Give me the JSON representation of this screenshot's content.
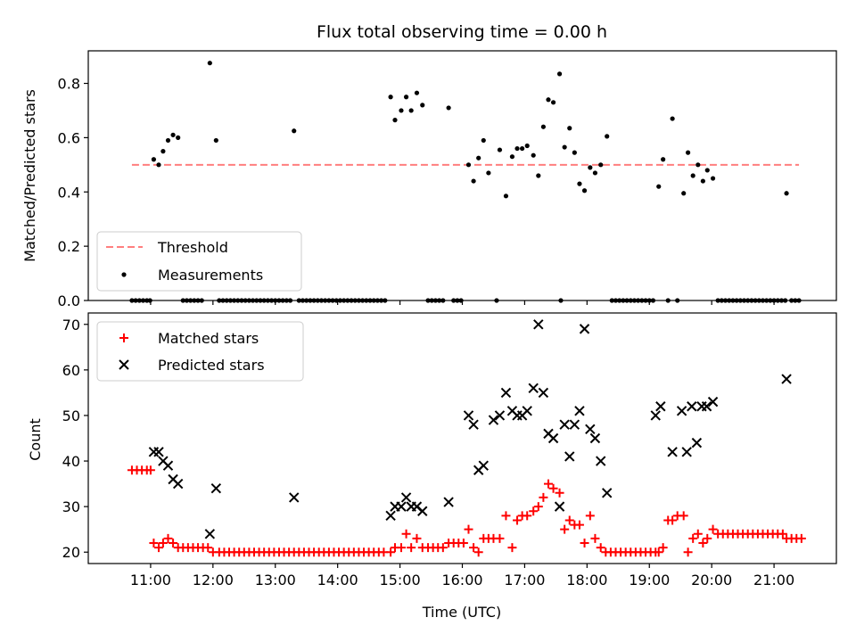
{
  "chart_data": [
    {
      "type": "scatter",
      "title": "Flux total observing time = 0.00 h",
      "xlabel": "",
      "ylabel": "Matched/Predicted stars",
      "ylim": [
        0,
        0.92
      ],
      "xlim": [
        10.0,
        22.0
      ],
      "yticks": [
        0.0,
        0.2,
        0.4,
        0.6,
        0.8
      ],
      "ytick_labels": [
        "0.0",
        "0.2",
        "0.4",
        "0.6",
        "0.8"
      ],
      "legend": {
        "position": "lower-left",
        "entries": [
          "Threshold",
          "Measurements"
        ]
      },
      "threshold": {
        "name": "Threshold",
        "value": 0.5,
        "x_range": [
          10.7,
          21.4
        ],
        "color": "#ff7f7f",
        "style": "dashed"
      },
      "series": [
        {
          "name": "Measurements",
          "color": "#000000",
          "x": [
            11.05,
            11.13,
            11.2,
            11.28,
            11.36,
            11.44,
            11.95,
            12.05,
            13.3,
            14.85,
            14.92,
            15.02,
            15.1,
            15.18,
            15.27,
            15.36,
            15.78,
            16.1,
            16.18,
            16.26,
            16.34,
            16.42,
            16.6,
            16.7,
            16.8,
            16.88,
            16.96,
            17.04,
            17.14,
            17.22,
            17.3,
            17.38,
            17.46,
            17.56,
            17.64,
            17.72,
            17.8,
            17.88,
            17.96,
            18.05,
            18.13,
            18.22,
            18.32,
            19.15,
            19.22,
            19.37,
            19.55,
            19.62,
            19.7,
            19.78,
            19.86,
            19.93,
            20.02,
            21.2
          ],
          "y": [
            0.52,
            0.5,
            0.55,
            0.59,
            0.61,
            0.6,
            0.875,
            0.59,
            0.625,
            0.75,
            0.665,
            0.7,
            0.75,
            0.7,
            0.765,
            0.72,
            0.71,
            0.5,
            0.44,
            0.525,
            0.59,
            0.47,
            0.555,
            0.385,
            0.53,
            0.56,
            0.56,
            0.57,
            0.535,
            0.46,
            0.64,
            0.74,
            0.73,
            0.835,
            0.565,
            0.635,
            0.545,
            0.43,
            0.405,
            0.49,
            0.47,
            0.5,
            0.605,
            0.42,
            0.52,
            0.67,
            0.395,
            0.545,
            0.46,
            0.5,
            0.44,
            0.48,
            0.45,
            0.395
          ]
        },
        {
          "name": "Measurements",
          "color": "#000000",
          "x": [
            10.7,
            10.76,
            10.82,
            10.88,
            10.94,
            10.99,
            11.52,
            11.58,
            11.64,
            11.7,
            11.76,
            11.82,
            12.1,
            12.16,
            12.22,
            12.28,
            12.34,
            12.4,
            12.46,
            12.52,
            12.58,
            12.64,
            12.7,
            12.76,
            12.82,
            12.88,
            12.94,
            13.0,
            13.06,
            13.12,
            13.18,
            13.24,
            13.38,
            13.44,
            13.5,
            13.56,
            13.62,
            13.68,
            13.74,
            13.8,
            13.86,
            13.92,
            13.98,
            14.04,
            14.1,
            14.16,
            14.22,
            14.28,
            14.34,
            14.4,
            14.46,
            14.52,
            14.58,
            14.64,
            14.7,
            14.76,
            15.45,
            15.51,
            15.57,
            15.63,
            15.69,
            15.86,
            15.92,
            15.98,
            16.55,
            17.58,
            18.4,
            18.46,
            18.52,
            18.58,
            18.64,
            18.7,
            18.76,
            18.82,
            18.88,
            18.94,
            19.0,
            19.06,
            19.3,
            19.45,
            20.1,
            20.16,
            20.22,
            20.28,
            20.34,
            20.4,
            20.46,
            20.52,
            20.58,
            20.64,
            20.7,
            20.76,
            20.82,
            20.88,
            20.94,
            21.0,
            21.06,
            21.12,
            21.18,
            21.28,
            21.34,
            21.4
          ],
          "y": [
            0,
            0,
            0,
            0,
            0,
            0,
            0,
            0,
            0,
            0,
            0,
            0,
            0,
            0,
            0,
            0,
            0,
            0,
            0,
            0,
            0,
            0,
            0,
            0,
            0,
            0,
            0,
            0,
            0,
            0,
            0,
            0,
            0,
            0,
            0,
            0,
            0,
            0,
            0,
            0,
            0,
            0,
            0,
            0,
            0,
            0,
            0,
            0,
            0,
            0,
            0,
            0,
            0,
            0,
            0,
            0,
            0,
            0,
            0,
            0,
            0,
            0,
            0,
            0,
            0,
            0,
            0,
            0,
            0,
            0,
            0,
            0,
            0,
            0,
            0,
            0,
            0,
            0,
            0,
            0,
            0,
            0,
            0,
            0,
            0,
            0,
            0,
            0,
            0,
            0,
            0,
            0,
            0,
            0,
            0,
            0,
            0,
            0,
            0,
            0,
            0,
            0
          ]
        }
      ]
    },
    {
      "type": "scatter",
      "title": "",
      "xlabel": "Time (UTC)",
      "ylabel": "Count",
      "ylim": [
        17.5,
        72.5
      ],
      "xlim": [
        10.0,
        22.0
      ],
      "yticks": [
        20,
        30,
        40,
        50,
        60,
        70
      ],
      "ytick_labels": [
        "20",
        "30",
        "40",
        "50",
        "60",
        "70"
      ],
      "xticks": [
        11,
        12,
        13,
        14,
        15,
        16,
        17,
        18,
        19,
        20,
        21
      ],
      "xtick_labels": [
        "11:00",
        "12:00",
        "13:00",
        "14:00",
        "15:00",
        "16:00",
        "17:00",
        "18:00",
        "19:00",
        "20:00",
        "21:00"
      ],
      "legend": {
        "position": "top-left",
        "entries": [
          "Matched stars",
          "Predicted stars"
        ]
      },
      "series": [
        {
          "name": "Matched stars",
          "color": "#ff0000",
          "marker": "plus",
          "x": [
            10.7,
            10.78,
            10.86,
            10.94,
            11.0,
            11.05,
            11.13,
            11.2,
            11.28,
            11.36,
            11.44,
            11.52,
            11.6,
            11.68,
            11.76,
            11.84,
            11.92,
            12.0,
            12.1,
            12.18,
            12.26,
            12.34,
            12.42,
            12.5,
            12.58,
            12.66,
            12.74,
            12.82,
            12.9,
            12.98,
            13.06,
            13.14,
            13.22,
            13.3,
            13.38,
            13.46,
            13.54,
            13.62,
            13.7,
            13.78,
            13.86,
            13.94,
            14.02,
            14.1,
            14.18,
            14.26,
            14.34,
            14.42,
            14.5,
            14.58,
            14.66,
            14.74,
            14.85,
            14.92,
            15.02,
            15.1,
            15.18,
            15.27,
            15.36,
            15.45,
            15.53,
            15.61,
            15.69,
            15.78,
            15.86,
            15.94,
            16.02,
            16.1,
            16.18,
            16.26,
            16.34,
            16.42,
            16.5,
            16.6,
            16.7,
            16.8,
            16.88,
            16.96,
            17.04,
            17.14,
            17.22,
            17.3,
            17.38,
            17.46,
            17.56,
            17.64,
            17.72,
            17.8,
            17.88,
            17.96,
            18.05,
            18.13,
            18.22,
            18.3,
            18.38,
            18.46,
            18.54,
            18.62,
            18.7,
            18.78,
            18.86,
            18.94,
            19.02,
            19.1,
            19.15,
            19.22,
            19.3,
            19.37,
            19.45,
            19.55,
            19.62,
            19.7,
            19.78,
            19.86,
            19.93,
            20.02,
            20.1,
            20.18,
            20.26,
            20.34,
            20.42,
            20.5,
            20.58,
            20.66,
            20.74,
            20.82,
            20.9,
            20.98,
            21.06,
            21.14,
            21.2,
            21.28,
            21.36,
            21.44
          ],
          "y": [
            38,
            38,
            38,
            38,
            38,
            22,
            21,
            22,
            23,
            22,
            21,
            21,
            21,
            21,
            21,
            21,
            21,
            20,
            20,
            20,
            20,
            20,
            20,
            20,
            20,
            20,
            20,
            20,
            20,
            20,
            20,
            20,
            20,
            20,
            20,
            20,
            20,
            20,
            20,
            20,
            20,
            20,
            20,
            20,
            20,
            20,
            20,
            20,
            20,
            20,
            20,
            20,
            20,
            21,
            21,
            24,
            21,
            23,
            21,
            21,
            21,
            21,
            21,
            22,
            22,
            22,
            22,
            25,
            21,
            20,
            23,
            23,
            23,
            23,
            28,
            21,
            27,
            28,
            28,
            29,
            30,
            32,
            35,
            34,
            33,
            25,
            27,
            26,
            26,
            22,
            28,
            23,
            21,
            20,
            20,
            20,
            20,
            20,
            20,
            20,
            20,
            20,
            20,
            20,
            20,
            21,
            27,
            27,
            28,
            28,
            20,
            23,
            24,
            22,
            23,
            25,
            24,
            24,
            24,
            24,
            24,
            24,
            24,
            24,
            24,
            24,
            24,
            24,
            24,
            24,
            23,
            23,
            23,
            23
          ]
        },
        {
          "name": "Predicted stars",
          "color": "#000000",
          "marker": "x",
          "x": [
            11.05,
            11.13,
            11.2,
            11.28,
            11.36,
            11.44,
            11.95,
            12.05,
            13.3,
            14.85,
            14.92,
            15.02,
            15.1,
            15.18,
            15.27,
            15.36,
            15.78,
            16.1,
            16.18,
            16.26,
            16.34,
            16.5,
            16.6,
            16.7,
            16.8,
            16.88,
            16.96,
            17.04,
            17.14,
            17.22,
            17.3,
            17.38,
            17.46,
            17.56,
            17.64,
            17.72,
            17.8,
            17.88,
            17.96,
            18.05,
            18.13,
            18.22,
            18.32,
            19.1,
            19.18,
            19.37,
            19.52,
            19.6,
            19.68,
            19.76,
            19.84,
            19.92,
            20.02,
            21.2
          ],
          "y": [
            42,
            42,
            40,
            39,
            36,
            35,
            24,
            34,
            32,
            28,
            30,
            30,
            32,
            30,
            30,
            29,
            31,
            50,
            48,
            38,
            39,
            49,
            50,
            55,
            51,
            50,
            50,
            51,
            56,
            70,
            55,
            46,
            45,
            30,
            48,
            41,
            48,
            51,
            69,
            47,
            45,
            40,
            33,
            50,
            52,
            42,
            51,
            42,
            52,
            44,
            52,
            52,
            53,
            58
          ]
        }
      ]
    }
  ]
}
